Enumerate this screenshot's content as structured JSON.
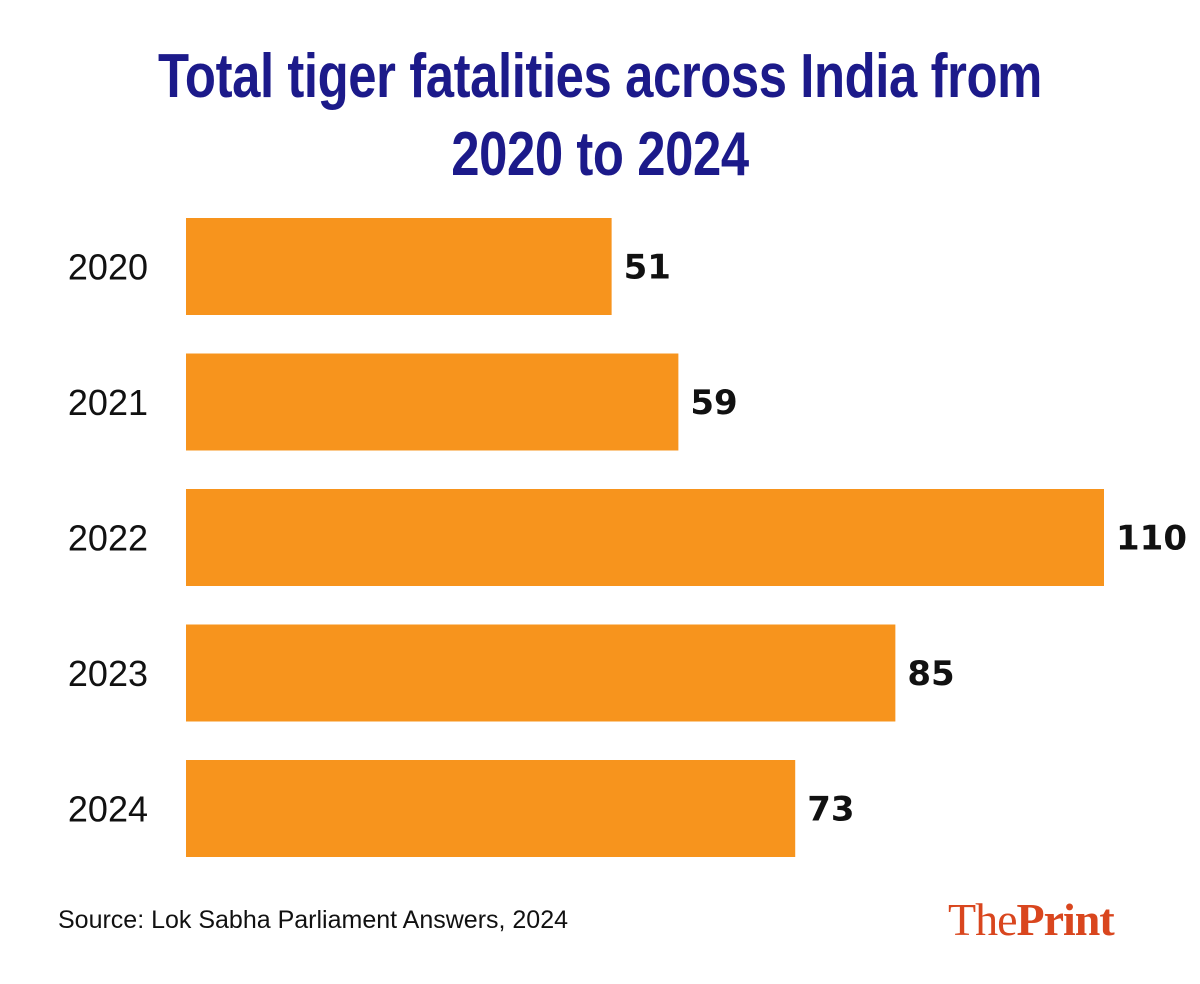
{
  "chart_data": {
    "type": "bar",
    "orientation": "horizontal",
    "title": "Total tiger fatalities across India from 2020 to 2024",
    "categories": [
      "2020",
      "2021",
      "2022",
      "2023",
      "2024"
    ],
    "values": [
      51,
      59,
      110,
      85,
      73
    ],
    "xlim": [
      0,
      110
    ],
    "grid": false,
    "bar_color": "#f7941d",
    "title_color": "#1c1a8a"
  },
  "source": "Source: Lok Sabha Parliament Answers, 2024",
  "logo": {
    "part1": "The",
    "part2": "Print",
    "color": "#d9461e"
  }
}
